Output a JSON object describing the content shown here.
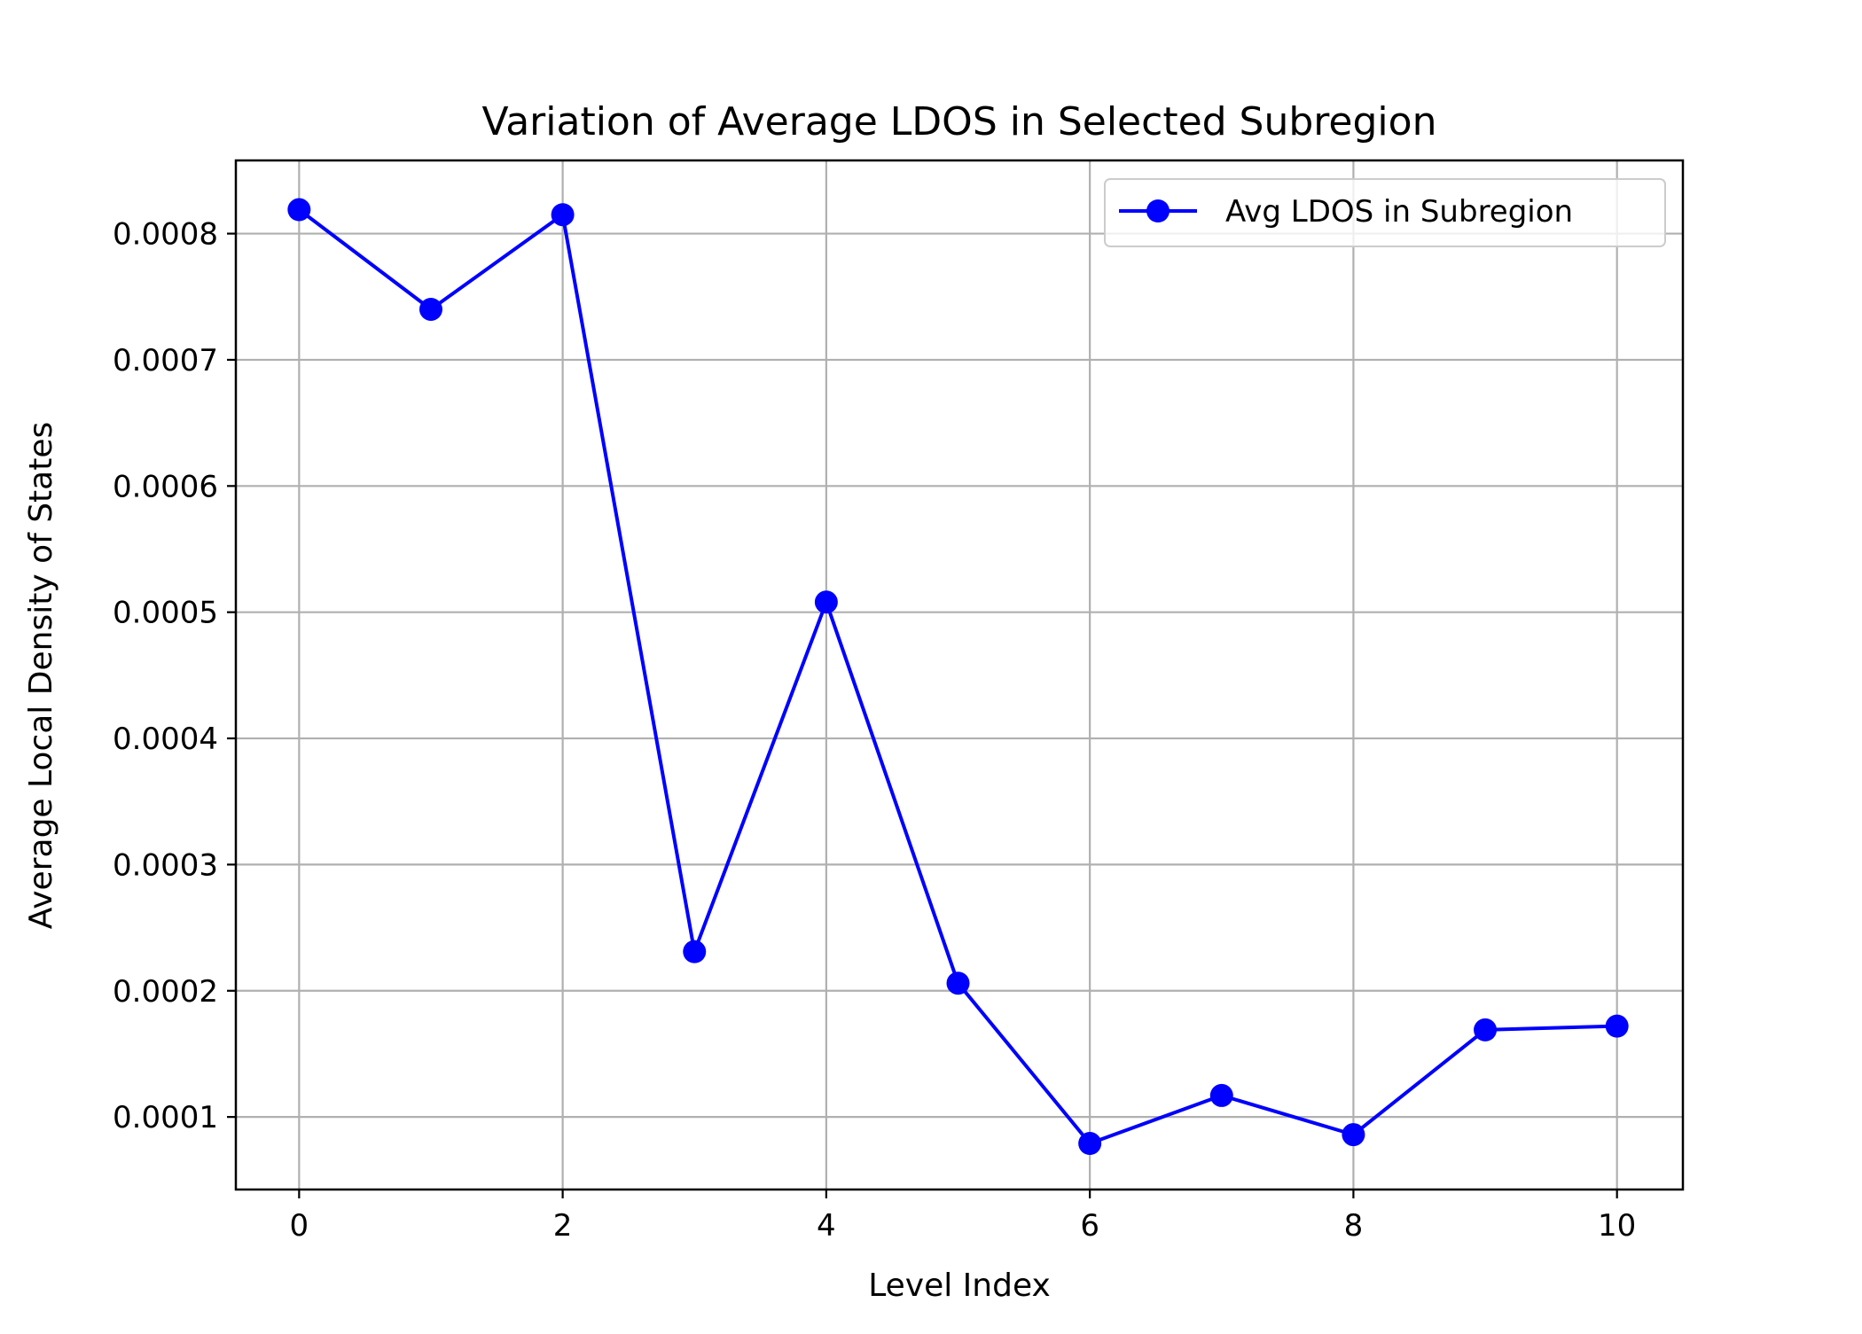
{
  "chart_data": {
    "type": "line",
    "title": "Variation of Average LDOS in Selected Subregion",
    "xlabel": "Level Index",
    "ylabel": "Average Local Density of States",
    "x": [
      0,
      1,
      2,
      3,
      4,
      5,
      6,
      7,
      8,
      9,
      10
    ],
    "series": [
      {
        "name": "Avg LDOS in Subregion",
        "color": "#0000ff",
        "marker": "circle",
        "values": [
          0.000819,
          0.00074,
          0.000815,
          0.000231,
          0.000508,
          0.000206,
          7.9e-05,
          0.000117,
          8.6e-05,
          0.000169,
          0.000172
        ]
      }
    ],
    "xlim": [
      -0.48,
      10.5
    ],
    "ylim": [
      4.25e-05,
      0.000858
    ],
    "xticks": [
      0,
      2,
      4,
      6,
      8,
      10
    ],
    "xtick_labels": [
      "0",
      "2",
      "4",
      "6",
      "8",
      "10"
    ],
    "yticks": [
      0.0001,
      0.0002,
      0.0003,
      0.0004,
      0.0005,
      0.0006,
      0.0007,
      0.0008
    ],
    "ytick_labels": [
      "0.0001",
      "0.0002",
      "0.0003",
      "0.0004",
      "0.0005",
      "0.0006",
      "0.0007",
      "0.0008"
    ],
    "grid": true,
    "legend_position": "top-right",
    "colors": {
      "grid": "#b0b0b0",
      "axes": "#000000",
      "legend_border": "#cccccc"
    }
  }
}
